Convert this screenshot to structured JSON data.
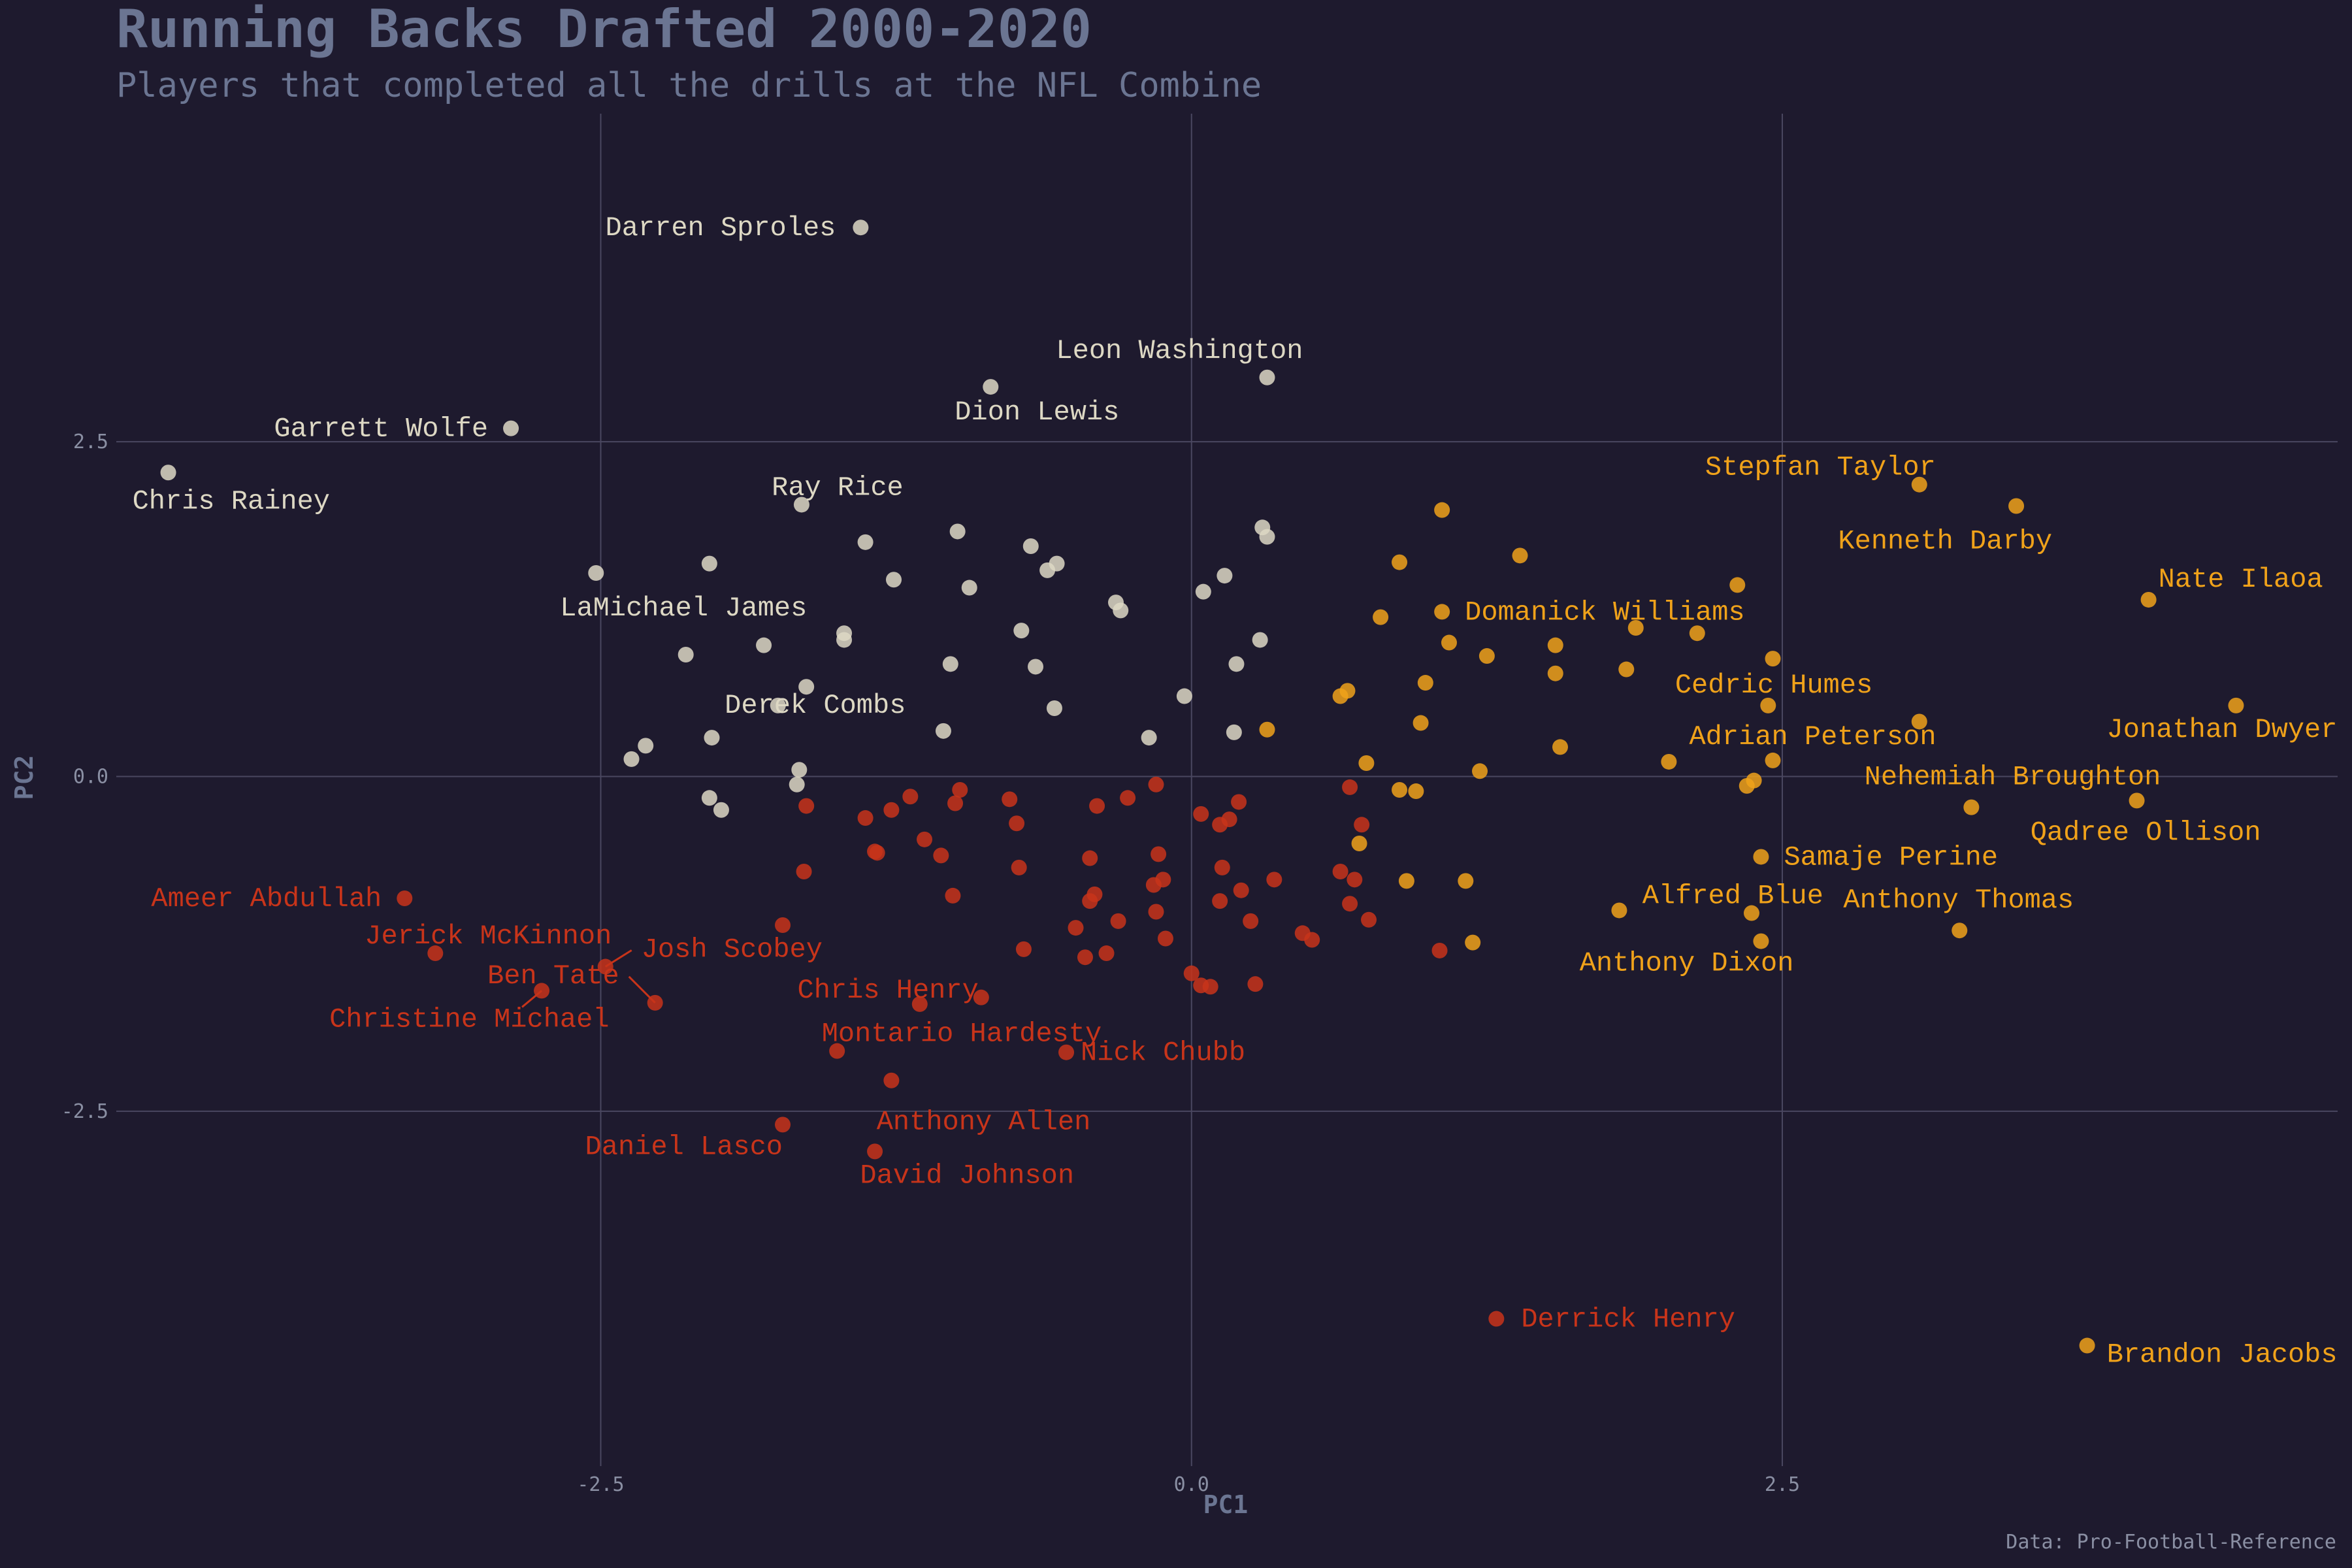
{
  "title": "Running Backs Drafted 2000-2020",
  "subtitle": "Players that completed all the drills at the NFL Combine",
  "caption": "Data: Pro-Football-Reference",
  "colors": {
    "background": "#1e1a2e",
    "cluster_1": "#ddd8c4",
    "cluster_2": "#f0a21a",
    "cluster_3": "#c8341a",
    "grid": "#4a4760",
    "text": "#6b7592"
  },
  "chart_data": {
    "type": "scatter",
    "xlabel": "PC1",
    "ylabel": "PC2",
    "xlim": [
      -4.55,
      4.85
    ],
    "ylim": [
      -5.15,
      4.95
    ],
    "xticks": [
      -2.5,
      0.0,
      2.5
    ],
    "yticks": [
      -2.5,
      0.0,
      2.5
    ],
    "xtick_labels": [
      "-2.5",
      "0.0",
      "2.5"
    ],
    "ytick_labels": [
      "-2.5",
      "0.0",
      "2.5"
    ],
    "grid": true,
    "legend": "none",
    "series": [
      {
        "color": "#ddd8c4",
        "points": [
          [
            -1.4,
            4.1
          ],
          [
            -0.85,
            2.91
          ],
          [
            0.32,
            2.98
          ],
          [
            -2.88,
            2.6
          ],
          [
            -4.33,
            2.27
          ],
          [
            -1.65,
            2.03
          ],
          [
            -2.52,
            1.52
          ],
          [
            -2.04,
            1.59
          ],
          [
            -1.38,
            1.75
          ],
          [
            -1.26,
            1.47
          ],
          [
            -0.99,
            1.83
          ],
          [
            -0.94,
            1.41
          ],
          [
            -0.68,
            1.72
          ],
          [
            -0.61,
            1.54
          ],
          [
            -0.57,
            1.59
          ],
          [
            -0.32,
            1.3
          ],
          [
            -0.3,
            1.24
          ],
          [
            0.05,
            1.38
          ],
          [
            0.14,
            1.5
          ],
          [
            0.3,
            1.86
          ],
          [
            0.32,
            1.79
          ],
          [
            -2.14,
            0.91
          ],
          [
            -1.81,
            0.98
          ],
          [
            -1.47,
            1.07
          ],
          [
            -1.47,
            1.02
          ],
          [
            -0.72,
            1.09
          ],
          [
            0.29,
            1.02
          ],
          [
            -1.02,
            0.84
          ],
          [
            -0.66,
            0.82
          ],
          [
            -0.58,
            0.51
          ],
          [
            -1.63,
            0.67
          ],
          [
            -1.75,
            0.53
          ],
          [
            0.19,
            0.84
          ],
          [
            -0.03,
            0.6
          ],
          [
            -2.03,
            0.29
          ],
          [
            -2.31,
            0.23
          ],
          [
            -2.37,
            0.13
          ],
          [
            -1.66,
            0.05
          ],
          [
            -1.67,
            -0.06
          ],
          [
            -1.05,
            0.34
          ],
          [
            -0.18,
            0.29
          ],
          [
            0.18,
            0.33
          ],
          [
            -2.04,
            -0.16
          ],
          [
            -1.99,
            -0.25
          ]
        ]
      },
      {
        "color": "#f0a21a",
        "points": [
          [
            3.08,
            2.18
          ],
          [
            3.49,
            2.02
          ],
          [
            4.05,
            1.32
          ],
          [
            4.42,
            0.53
          ],
          [
            4.0,
            -0.18
          ],
          [
            3.3,
            -0.23
          ],
          [
            3.08,
            0.41
          ],
          [
            3.25,
            -1.15
          ],
          [
            1.06,
            1.99
          ],
          [
            0.88,
            1.6
          ],
          [
            1.39,
            1.65
          ],
          [
            2.31,
            1.43
          ],
          [
            0.8,
            1.19
          ],
          [
            1.06,
            1.23
          ],
          [
            1.09,
            1.0
          ],
          [
            1.25,
            0.9
          ],
          [
            1.54,
            0.98
          ],
          [
            1.88,
            1.11
          ],
          [
            2.14,
            1.07
          ],
          [
            1.54,
            0.77
          ],
          [
            1.84,
            0.8
          ],
          [
            2.46,
            0.88
          ],
          [
            0.99,
            0.7
          ],
          [
            0.66,
            0.64
          ],
          [
            0.63,
            0.6
          ],
          [
            2.44,
            0.53
          ],
          [
            0.97,
            0.4
          ],
          [
            0.32,
            0.35
          ],
          [
            1.56,
            0.22
          ],
          [
            2.02,
            0.11
          ],
          [
            2.46,
            0.12
          ],
          [
            0.74,
            0.1
          ],
          [
            1.22,
            0.04
          ],
          [
            2.38,
            -0.03
          ],
          [
            2.35,
            -0.07
          ],
          [
            0.88,
            -0.1
          ],
          [
            0.95,
            -0.11
          ],
          [
            0.71,
            -0.5
          ],
          [
            2.41,
            -0.6
          ],
          [
            0.91,
            -0.78
          ],
          [
            1.16,
            -0.78
          ],
          [
            1.81,
            -1.0
          ],
          [
            2.37,
            -1.02
          ],
          [
            1.19,
            -1.24
          ],
          [
            2.41,
            -1.23
          ],
          [
            3.79,
            -4.25
          ]
        ]
      },
      {
        "color": "#c8341a",
        "points": [
          [
            -3.33,
            -0.91
          ],
          [
            -3.2,
            -1.32
          ],
          [
            -2.48,
            -1.42
          ],
          [
            -2.75,
            -1.6
          ],
          [
            -2.27,
            -1.69
          ],
          [
            -1.73,
            -2.6
          ],
          [
            -1.34,
            -2.8
          ],
          [
            -1.5,
            -2.05
          ],
          [
            -1.27,
            -2.27
          ],
          [
            -1.15,
            -1.7
          ],
          [
            -0.89,
            -1.65
          ],
          [
            -0.53,
            -2.06
          ],
          [
            -1.73,
            -1.11
          ],
          [
            -1.63,
            -0.22
          ],
          [
            -1.64,
            -0.71
          ],
          [
            -1.38,
            -0.31
          ],
          [
            -1.27,
            -0.25
          ],
          [
            -1.34,
            -0.56
          ],
          [
            -1.33,
            -0.57
          ],
          [
            -1.19,
            -0.15
          ],
          [
            -1.13,
            -0.47
          ],
          [
            -1.06,
            -0.59
          ],
          [
            -1.0,
            -0.2
          ],
          [
            -0.98,
            -0.1
          ],
          [
            -1.01,
            -0.89
          ],
          [
            -0.77,
            -0.17
          ],
          [
            -0.74,
            -0.35
          ],
          [
            -0.73,
            -0.68
          ],
          [
            -0.71,
            -1.29
          ],
          [
            -0.49,
            -1.13
          ],
          [
            -0.45,
            -1.35
          ],
          [
            -0.43,
            -0.61
          ],
          [
            -0.43,
            -0.93
          ],
          [
            -0.41,
            -0.88
          ],
          [
            -0.4,
            -0.22
          ],
          [
            -0.36,
            -1.32
          ],
          [
            -0.31,
            -1.08
          ],
          [
            -0.27,
            -0.16
          ],
          [
            -0.15,
            -0.06
          ],
          [
            -0.14,
            -0.58
          ],
          [
            -0.16,
            -0.81
          ],
          [
            -0.12,
            -0.77
          ],
          [
            -0.15,
            -1.01
          ],
          [
            -0.11,
            -1.21
          ],
          [
            0.0,
            -1.47
          ],
          [
            0.04,
            -0.28
          ],
          [
            0.04,
            -1.56
          ],
          [
            0.08,
            -1.57
          ],
          [
            0.12,
            -0.36
          ],
          [
            0.12,
            -0.93
          ],
          [
            0.13,
            -0.68
          ],
          [
            0.16,
            -0.32
          ],
          [
            0.21,
            -0.85
          ],
          [
            0.2,
            -0.19
          ],
          [
            0.25,
            -1.08
          ],
          [
            0.27,
            -1.55
          ],
          [
            0.35,
            -0.77
          ],
          [
            0.47,
            -1.17
          ],
          [
            0.51,
            -1.22
          ],
          [
            0.63,
            -0.71
          ],
          [
            0.67,
            -0.95
          ],
          [
            0.67,
            -0.08
          ],
          [
            0.69,
            -0.77
          ],
          [
            0.72,
            -0.36
          ],
          [
            0.75,
            -1.07
          ],
          [
            1.05,
            -1.3
          ],
          [
            1.29,
            -4.05
          ]
        ]
      }
    ],
    "labels": [
      {
        "text": "Darren Sproles",
        "x": -1.4,
        "y": 4.1,
        "series": 0
      },
      {
        "text": "Leon Washington",
        "x": 0.32,
        "y": 2.98,
        "series": 0
      },
      {
        "text": "Dion Lewis",
        "x": -0.85,
        "y": 2.91,
        "series": 0
      },
      {
        "text": "Garrett Wolfe",
        "x": -2.88,
        "y": 2.6,
        "series": 0
      },
      {
        "text": "Chris Rainey",
        "x": -4.33,
        "y": 2.27,
        "series": 0
      },
      {
        "text": "Ray Rice",
        "x": -1.65,
        "y": 2.03,
        "series": 0
      },
      {
        "text": "LaMichael James",
        "x": -2.52,
        "y": 1.52,
        "series": 0
      },
      {
        "text": "Derek Combs",
        "x": -1.63,
        "y": 0.67,
        "series": 0
      },
      {
        "text": "Stepfan Taylor",
        "x": 3.08,
        "y": 2.18,
        "series": 1
      },
      {
        "text": "Kenneth Darby",
        "x": 3.49,
        "y": 2.02,
        "series": 1
      },
      {
        "text": "Nate Ilaoa",
        "x": 4.05,
        "y": 1.32,
        "series": 1
      },
      {
        "text": "Domanick Williams",
        "x": 1.06,
        "y": 1.23,
        "series": 1
      },
      {
        "text": "Cedric Humes",
        "x": 2.44,
        "y": 0.53,
        "series": 1
      },
      {
        "text": "Jonathan Dwyer",
        "x": 4.42,
        "y": 0.53,
        "series": 1
      },
      {
        "text": "Adrian Peterson",
        "x": 2.46,
        "y": 0.12,
        "series": 1
      },
      {
        "text": "Nehemiah Broughton",
        "x": 3.3,
        "y": -0.23,
        "series": 1
      },
      {
        "text": "Qadree Ollison",
        "x": 4.0,
        "y": -0.18,
        "series": 1
      },
      {
        "text": "Samaje Perine",
        "x": 2.41,
        "y": -0.6,
        "series": 1
      },
      {
        "text": "Alfred Blue",
        "x": 2.37,
        "y": -1.02,
        "series": 1
      },
      {
        "text": "Anthony Thomas",
        "x": 3.25,
        "y": -1.15,
        "series": 1
      },
      {
        "text": "Anthony Dixon",
        "x": 2.41,
        "y": -1.23,
        "series": 1
      },
      {
        "text": "Brandon Jacobs",
        "x": 3.79,
        "y": -4.25,
        "series": 1
      },
      {
        "text": "Ameer Abdullah",
        "x": -3.33,
        "y": -0.91,
        "series": 2
      },
      {
        "text": "Jerick McKinnon",
        "x": -3.2,
        "y": -1.32,
        "series": 2
      },
      {
        "text": "Josh Scobey",
        "x": -2.48,
        "y": -1.42,
        "series": 2
      },
      {
        "text": "Ben Tate",
        "x": -2.27,
        "y": -1.69,
        "series": 2
      },
      {
        "text": "Christine Michael",
        "x": -2.75,
        "y": -1.6,
        "series": 2
      },
      {
        "text": "Chris Henry",
        "x": -1.15,
        "y": -1.7,
        "series": 2
      },
      {
        "text": "Montario Hardesty",
        "x": -1.5,
        "y": -2.05,
        "series": 2
      },
      {
        "text": "Nick Chubb",
        "x": -0.53,
        "y": -2.06,
        "series": 2
      },
      {
        "text": "Anthony Allen",
        "x": -1.27,
        "y": -2.27,
        "series": 2
      },
      {
        "text": "Daniel Lasco",
        "x": -1.73,
        "y": -2.6,
        "series": 2
      },
      {
        "text": "David Johnson",
        "x": -1.34,
        "y": -2.8,
        "series": 2
      },
      {
        "text": "Derrick Henry",
        "x": 1.29,
        "y": -4.05,
        "series": 2
      }
    ]
  }
}
